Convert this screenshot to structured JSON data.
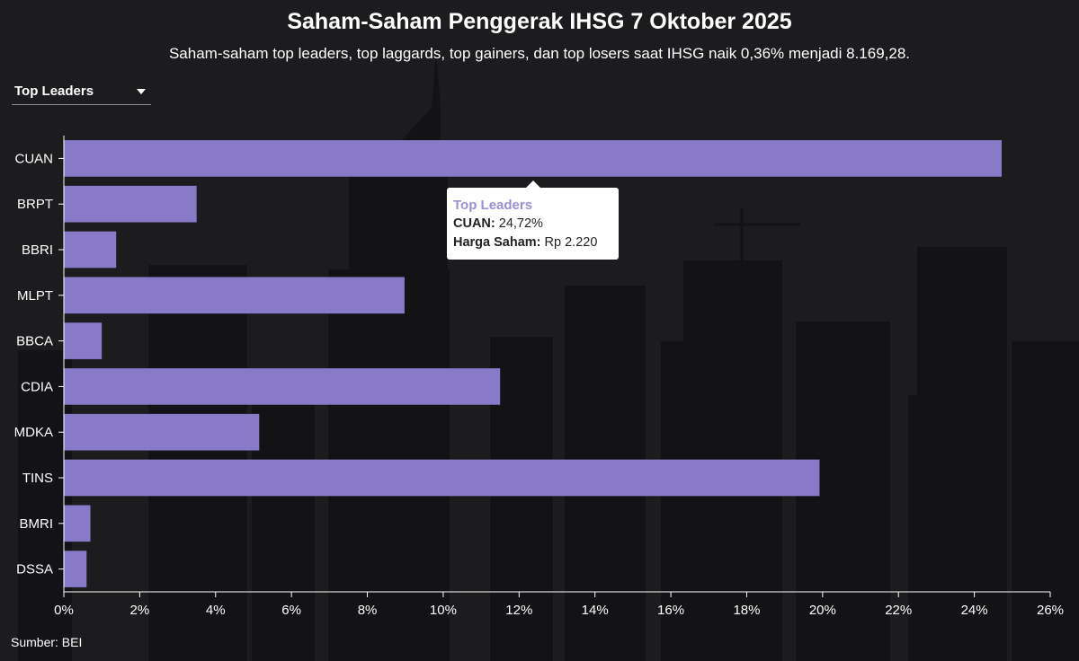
{
  "header": {
    "title": "Saham-Saham Penggerak IHSG 7 Oktober 2025",
    "subtitle": "Saham-saham top leaders, top laggards, top gainers, dan top losers saat IHSG naik 0,36% menjadi 8.169,28."
  },
  "dropdown": {
    "selected": "Top Leaders"
  },
  "tooltip": {
    "title": "Top Leaders",
    "row1_key": "CUAN:",
    "row1_value": "24,72%",
    "row2_key": "Harga Saham:",
    "row2_value": "Rp 2.220"
  },
  "footer": {
    "source": "Sumber: BEI"
  },
  "colors": {
    "bar": "#8e7fd3",
    "background": "#1c1b1e",
    "axis": "#ffffff"
  },
  "chart_data": {
    "type": "bar",
    "orientation": "horizontal",
    "categories": [
      "CUAN",
      "BRPT",
      "BBRI",
      "MLPT",
      "BBCA",
      "CDIA",
      "MDKA",
      "TINS",
      "BMRI",
      "DSSA"
    ],
    "values": [
      24.72,
      3.5,
      1.38,
      8.98,
      1.0,
      11.5,
      5.15,
      19.92,
      0.7,
      0.6
    ],
    "xlim": [
      0,
      26
    ],
    "xticks": [
      "0%",
      "2%",
      "4%",
      "6%",
      "8%",
      "10%",
      "12%",
      "14%",
      "16%",
      "18%",
      "20%",
      "22%",
      "24%",
      "26%"
    ],
    "xlabel": "",
    "ylabel": "",
    "grid": false,
    "legend": "none"
  }
}
